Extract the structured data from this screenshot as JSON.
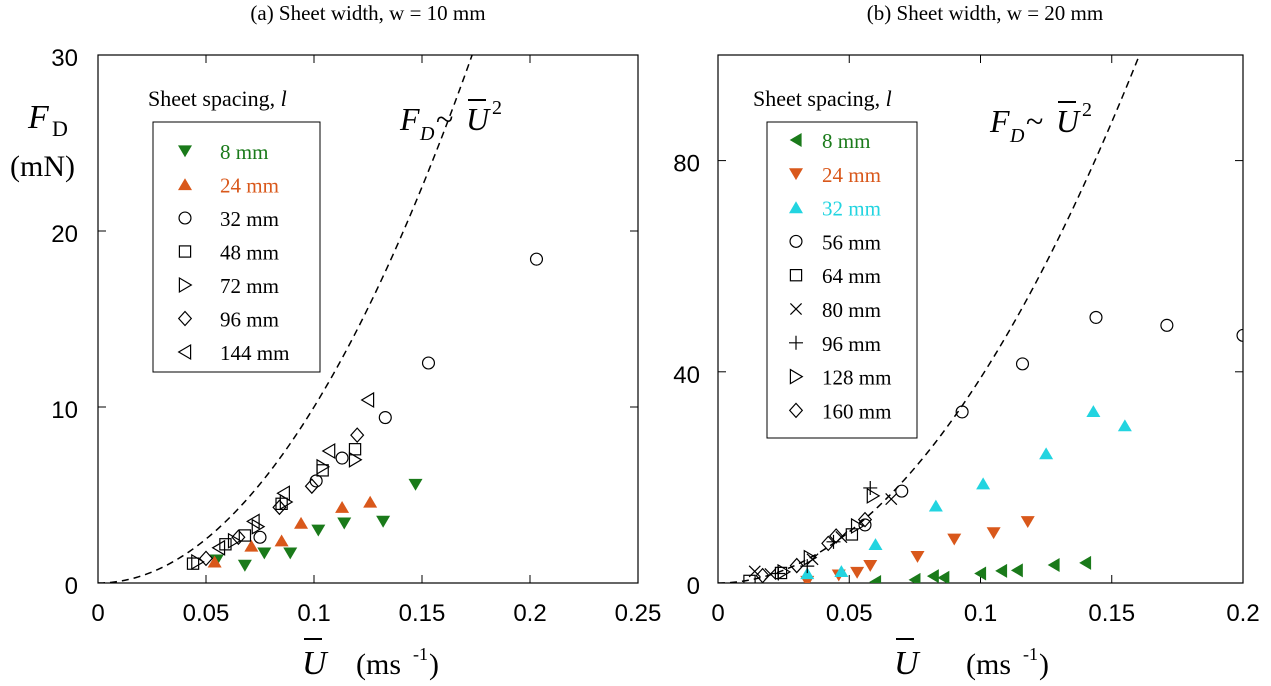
{
  "chart_data": [
    {
      "type": "scatter",
      "title": "(a) Sheet width, w = 10 mm",
      "ylabel_main": "F",
      "ylabel_sub": "D",
      "ylabel_unit": "(mN)",
      "xlabel_main": "U",
      "xlabel_unit": "(ms",
      "xlabel_unit_sup": "-1",
      "xlabel_unit_close": ")",
      "xlim": [
        0,
        0.25
      ],
      "ylim": [
        0,
        30
      ],
      "xticks": [
        0,
        0.05,
        0.1,
        0.15,
        0.2,
        0.25
      ],
      "xtick_labels": [
        "0",
        "0.05",
        "0.1",
        "0.15",
        "0.2",
        "0.25"
      ],
      "yticks": [
        0,
        10,
        20,
        30
      ],
      "ytick_labels": [
        "0",
        "10",
        "20",
        "30"
      ],
      "legend_title_main": "Sheet spacing, ",
      "legend_title_var": "l",
      "fit_label_main": "F",
      "fit_label_sub": "D",
      "fit_label_tilde": "~",
      "fit_label_var": "U",
      "fit_label_sup": "2",
      "fit_curve": {
        "coef": 1000,
        "exponent": 2
      },
      "series": [
        {
          "name": "8 mm",
          "marker": "tri-down-filled",
          "color": "#1a7a1a",
          "points": [
            [
              0.055,
              1.3
            ],
            [
              0.068,
              1.0
            ],
            [
              0.077,
              1.7
            ],
            [
              0.089,
              1.7
            ],
            [
              0.102,
              3.0
            ],
            [
              0.114,
              3.4
            ],
            [
              0.132,
              3.5
            ],
            [
              0.147,
              5.6
            ]
          ]
        },
        {
          "name": "24 mm",
          "marker": "tri-up-filled",
          "color": "#d9581b",
          "points": [
            [
              0.054,
              1.2
            ],
            [
              0.071,
              2.1
            ],
            [
              0.085,
              2.4
            ],
            [
              0.094,
              3.4
            ],
            [
              0.113,
              4.3
            ],
            [
              0.126,
              4.6
            ]
          ]
        },
        {
          "name": "32 mm",
          "marker": "circle",
          "color": "#000000",
          "points": [
            [
              0.075,
              2.6
            ],
            [
              0.101,
              5.8
            ],
            [
              0.113,
              7.1
            ],
            [
              0.133,
              9.4
            ],
            [
              0.153,
              12.5
            ],
            [
              0.203,
              18.4
            ]
          ]
        },
        {
          "name": "48 mm",
          "marker": "square",
          "color": "#000000",
          "points": [
            [
              0.044,
              1.1
            ],
            [
              0.059,
              2.2
            ],
            [
              0.068,
              2.7
            ],
            [
              0.085,
              4.5
            ],
            [
              0.104,
              6.4
            ],
            [
              0.119,
              7.6
            ]
          ]
        },
        {
          "name": "72 mm",
          "marker": "tri-right",
          "color": "#000000",
          "points": [
            [
              0.046,
              1.2
            ],
            [
              0.063,
              2.4
            ],
            [
              0.074,
              3.2
            ],
            [
              0.087,
              4.6
            ],
            [
              0.104,
              6.6
            ],
            [
              0.119,
              7.0
            ]
          ]
        },
        {
          "name": "96 mm",
          "marker": "diamond",
          "color": "#000000",
          "points": [
            [
              0.05,
              1.4
            ],
            [
              0.065,
              2.6
            ],
            [
              0.084,
              4.3
            ],
            [
              0.099,
              5.5
            ],
            [
              0.12,
              8.4
            ]
          ]
        },
        {
          "name": "144 mm",
          "marker": "tri-left",
          "color": "#000000",
          "points": [
            [
              0.056,
              2.0
            ],
            [
              0.072,
              3.5
            ],
            [
              0.086,
              5.1
            ],
            [
              0.107,
              7.5
            ],
            [
              0.125,
              10.4
            ]
          ]
        }
      ]
    },
    {
      "type": "scatter",
      "title": "(b) Sheet width, w = 20 mm",
      "xlabel_main": "U",
      "xlabel_unit": "(ms",
      "xlabel_unit_sup": "-1",
      "xlabel_unit_close": ")",
      "xlim": [
        0,
        0.2
      ],
      "ylim": [
        0,
        100
      ],
      "xticks": [
        0,
        0.05,
        0.1,
        0.15,
        0.2
      ],
      "xtick_labels": [
        "0",
        "0.05",
        "0.1",
        "0.15",
        "0.2"
      ],
      "yticks": [
        0,
        40,
        80
      ],
      "ytick_labels": [
        "0",
        "40",
        "80"
      ],
      "legend_title_main": "Sheet spacing, ",
      "legend_title_var": "l",
      "fit_label_main": "F",
      "fit_label_sub": "D",
      "fit_label_tilde": "~",
      "fit_label_var": "U",
      "fit_label_sup": "2",
      "fit_curve": {
        "coef": 3880,
        "exponent": 2
      },
      "series": [
        {
          "name": "8 mm",
          "marker": "tri-left-filled",
          "color": "#1a7a1a",
          "points": [
            [
              0.06,
              0.2
            ],
            [
              0.075,
              0.6
            ],
            [
              0.082,
              1.3
            ],
            [
              0.086,
              1.0
            ],
            [
              0.1,
              1.8
            ],
            [
              0.108,
              2.3
            ],
            [
              0.114,
              2.4
            ],
            [
              0.128,
              3.4
            ],
            [
              0.14,
              3.8
            ]
          ]
        },
        {
          "name": "24 mm",
          "marker": "tri-down-filled",
          "color": "#d9581b",
          "points": [
            [
              0.034,
              0.3
            ],
            [
              0.046,
              1.5
            ],
            [
              0.053,
              2.0
            ],
            [
              0.058,
              3.3
            ],
            [
              0.076,
              5.0
            ],
            [
              0.09,
              8.3
            ],
            [
              0.105,
              9.5
            ],
            [
              0.118,
              11.6
            ]
          ]
        },
        {
          "name": "32 mm",
          "marker": "tri-up-filled",
          "color": "#22d4e0",
          "points": [
            [
              0.034,
              1.8
            ],
            [
              0.047,
              2.2
            ],
            [
              0.06,
              7.3
            ],
            [
              0.083,
              14.6
            ],
            [
              0.101,
              18.8
            ],
            [
              0.125,
              24.5
            ],
            [
              0.143,
              32.5
            ],
            [
              0.155,
              29.8
            ]
          ]
        },
        {
          "name": "56 mm",
          "marker": "circle",
          "color": "#000000",
          "points": [
            [
              0.056,
              11.0
            ],
            [
              0.07,
              17.4
            ],
            [
              0.093,
              32.4
            ],
            [
              0.116,
              41.5
            ],
            [
              0.144,
              50.3
            ],
            [
              0.171,
              48.8
            ],
            [
              0.2,
              46.9
            ]
          ]
        },
        {
          "name": "64 mm",
          "marker": "square",
          "color": "#000000",
          "points": [
            [
              0.012,
              0.4
            ],
            [
              0.024,
              1.9
            ],
            [
              0.051,
              9.2
            ]
          ]
        },
        {
          "name": "80 mm",
          "marker": "cross",
          "color": "#000000",
          "points": [
            [
              0.014,
              2.2
            ],
            [
              0.02,
              1.7
            ],
            [
              0.036,
              4.5
            ],
            [
              0.047,
              8.7
            ],
            [
              0.066,
              15.9
            ]
          ]
        },
        {
          "name": "96 mm",
          "marker": "plus",
          "color": "#000000",
          "points": [
            [
              0.023,
              1.8
            ],
            [
              0.034,
              3.2
            ],
            [
              0.044,
              7.8
            ],
            [
              0.058,
              18.0
            ]
          ]
        },
        {
          "name": "128 mm",
          "marker": "tri-right",
          "color": "#000000",
          "points": [
            [
              0.025,
              2.1
            ],
            [
              0.035,
              4.8
            ],
            [
              0.053,
              10.8
            ],
            [
              0.059,
              16.5
            ]
          ]
        },
        {
          "name": "160 mm",
          "marker": "diamond",
          "color": "#000000",
          "points": [
            [
              0.017,
              1.4
            ],
            [
              0.03,
              3.3
            ],
            [
              0.042,
              7.5
            ],
            [
              0.045,
              8.9
            ],
            [
              0.056,
              12.0
            ]
          ]
        }
      ]
    }
  ]
}
